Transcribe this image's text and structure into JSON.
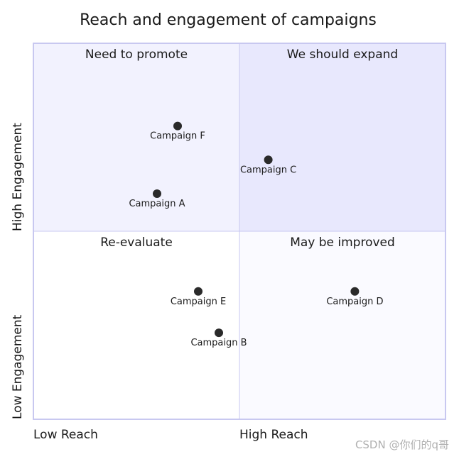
{
  "chart_data": {
    "type": "quadrant",
    "title": "Reach and engagement of campaigns",
    "x_axis": {
      "low": "Low Reach",
      "high": "High Reach",
      "range": [
        0,
        1
      ]
    },
    "y_axis": {
      "low": "Low Engagement",
      "high": "High Engagement",
      "range": [
        0,
        1
      ]
    },
    "quadrants": {
      "top_right": {
        "label": "We should expand",
        "color": "#e8e8fd"
      },
      "top_left": {
        "label": "Need to promote",
        "color": "#f2f2fe"
      },
      "bottom_left": {
        "label": "Re-evaluate",
        "color": "#ffffff"
      },
      "bottom_right": {
        "label": "May be improved",
        "color": "#fafaff"
      }
    },
    "points": [
      {
        "name": "Campaign A",
        "x": 0.3,
        "y": 0.6
      },
      {
        "name": "Campaign B",
        "x": 0.45,
        "y": 0.23
      },
      {
        "name": "Campaign C",
        "x": 0.57,
        "y": 0.69
      },
      {
        "name": "Campaign D",
        "x": 0.78,
        "y": 0.34
      },
      {
        "name": "Campaign E",
        "x": 0.4,
        "y": 0.34
      },
      {
        "name": "Campaign F",
        "x": 0.35,
        "y": 0.78
      }
    ],
    "border_color": "#c8c8f0",
    "point_color": "#2a2a2a"
  },
  "watermark": "CSDN @你们的q哥"
}
